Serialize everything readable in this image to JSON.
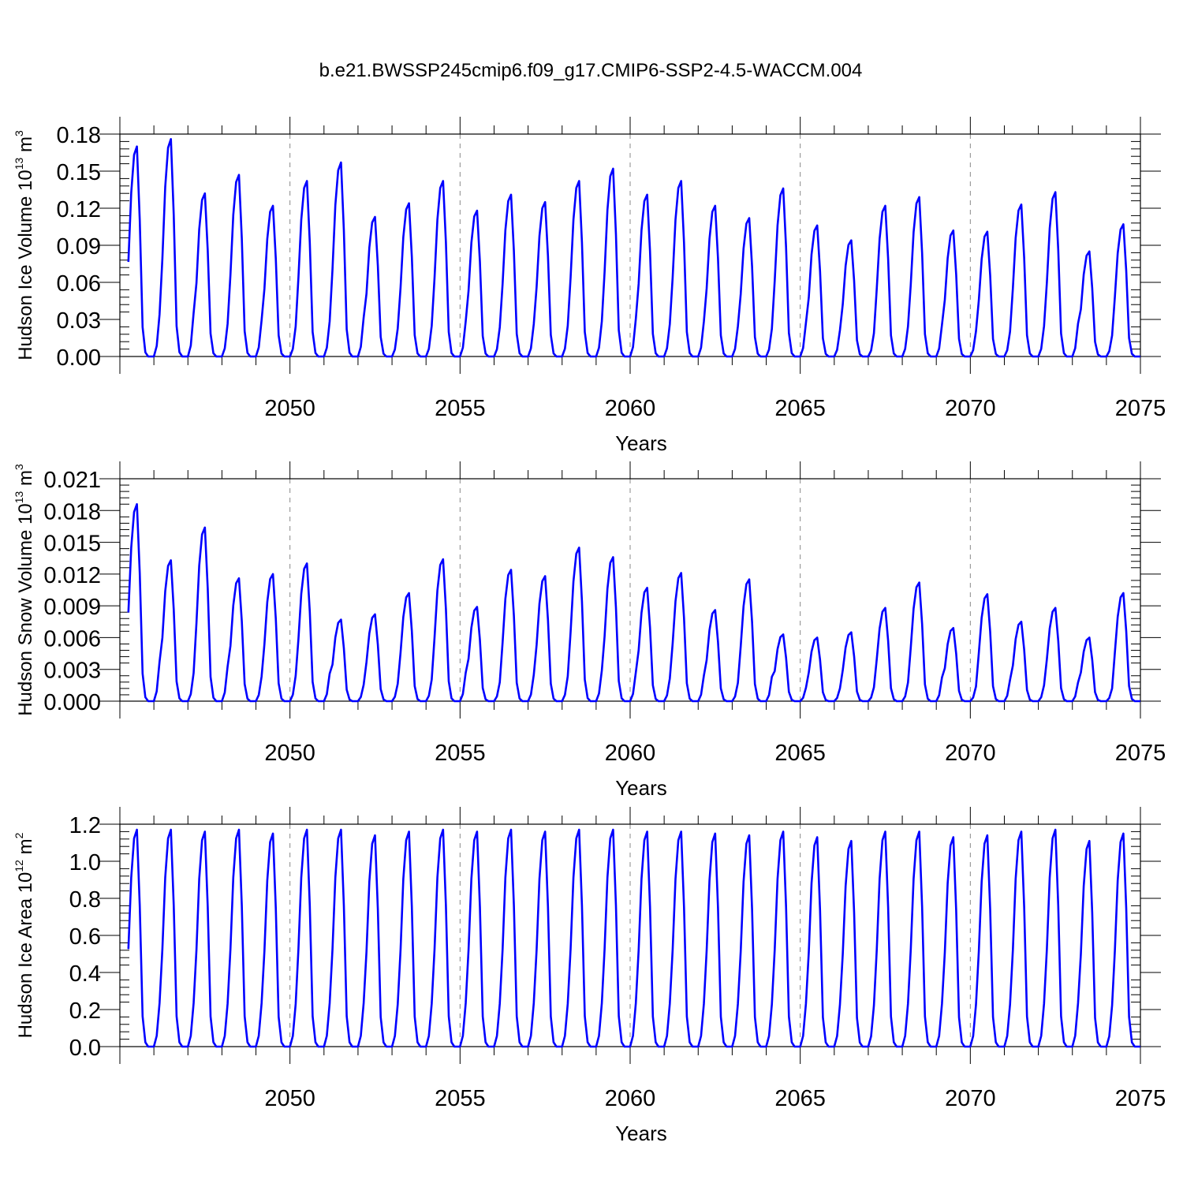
{
  "title": "b.e21.BWSSP245cmip6.f09_g17.CMIP6-SSP2-4.5-WACCM.004",
  "colors": {
    "line": "#0000ff",
    "axis": "#000000",
    "grid": "#888888"
  },
  "chart_data": [
    {
      "type": "line",
      "xlabel": "Years",
      "ylabel": {
        "text": "Hudson Ice Volume 10",
        "exp": "13",
        "unit": " m",
        "unit_exp": "3"
      },
      "x_range": [
        2045,
        2075
      ],
      "x_ticks": [
        2050,
        2055,
        2060,
        2065,
        2070,
        2075
      ],
      "y_range": [
        0,
        0.18
      ],
      "y_ticks": [
        "0.00",
        "0.03",
        "0.06",
        "0.09",
        "0.12",
        "0.15",
        "0.18"
      ],
      "grid": "vertical dashed at major x ticks",
      "series": [
        {
          "start_year": 2045,
          "seasonal_cycle": "annual",
          "annual_peaks": [
            0.17,
            0.176,
            0.132,
            0.147,
            0.122,
            0.142,
            0.157,
            0.113,
            0.124,
            0.142,
            0.118,
            0.131,
            0.125,
            0.142,
            0.152,
            0.131,
            0.142,
            0.122,
            0.112,
            0.136,
            0.106,
            0.094,
            0.122,
            0.129,
            0.102,
            0.101,
            0.123,
            0.133,
            0.085,
            0.107
          ],
          "annual_minimum": 0.0
        }
      ]
    },
    {
      "type": "line",
      "xlabel": "Years",
      "ylabel": {
        "text": "Hudson Snow Volume 10",
        "exp": "13",
        "unit": " m",
        "unit_exp": "3"
      },
      "x_range": [
        2045,
        2075
      ],
      "x_ticks": [
        2050,
        2055,
        2060,
        2065,
        2070,
        2075
      ],
      "y_range": [
        0,
        0.021
      ],
      "y_ticks": [
        "0.000",
        "0.003",
        "0.006",
        "0.009",
        "0.012",
        "0.015",
        "0.018",
        "0.021"
      ],
      "grid": "vertical dashed at major x ticks",
      "series": [
        {
          "start_year": 2045,
          "seasonal_cycle": "annual",
          "annual_peaks": [
            0.0186,
            0.0133,
            0.0164,
            0.0116,
            0.012,
            0.013,
            0.0077,
            0.0082,
            0.0102,
            0.0134,
            0.0089,
            0.0124,
            0.0118,
            0.0145,
            0.0136,
            0.0107,
            0.0121,
            0.0086,
            0.0115,
            0.0063,
            0.006,
            0.0065,
            0.0088,
            0.0112,
            0.0069,
            0.0101,
            0.0075,
            0.0088,
            0.006,
            0.0102
          ],
          "annual_minimum": 0.0
        }
      ]
    },
    {
      "type": "line",
      "xlabel": "Years",
      "ylabel": {
        "text": "Hudson Ice Area 10",
        "exp": "12",
        "unit": " m",
        "unit_exp": "2"
      },
      "x_range": [
        2045,
        2075
      ],
      "x_ticks": [
        2050,
        2055,
        2060,
        2065,
        2070,
        2075
      ],
      "y_range": [
        0,
        1.2
      ],
      "y_ticks": [
        "0.0",
        "0.2",
        "0.4",
        "0.6",
        "0.8",
        "1.0",
        "1.2"
      ],
      "grid": "vertical dashed at major x ticks",
      "series": [
        {
          "start_year": 2045,
          "seasonal_cycle": "annual",
          "annual_peaks": [
            1.17,
            1.17,
            1.16,
            1.17,
            1.15,
            1.17,
            1.17,
            1.14,
            1.16,
            1.17,
            1.16,
            1.17,
            1.16,
            1.17,
            1.17,
            1.16,
            1.16,
            1.15,
            1.14,
            1.16,
            1.13,
            1.11,
            1.16,
            1.16,
            1.13,
            1.14,
            1.16,
            1.17,
            1.11,
            1.15
          ],
          "annual_minimum": 0.0
        }
      ]
    }
  ]
}
